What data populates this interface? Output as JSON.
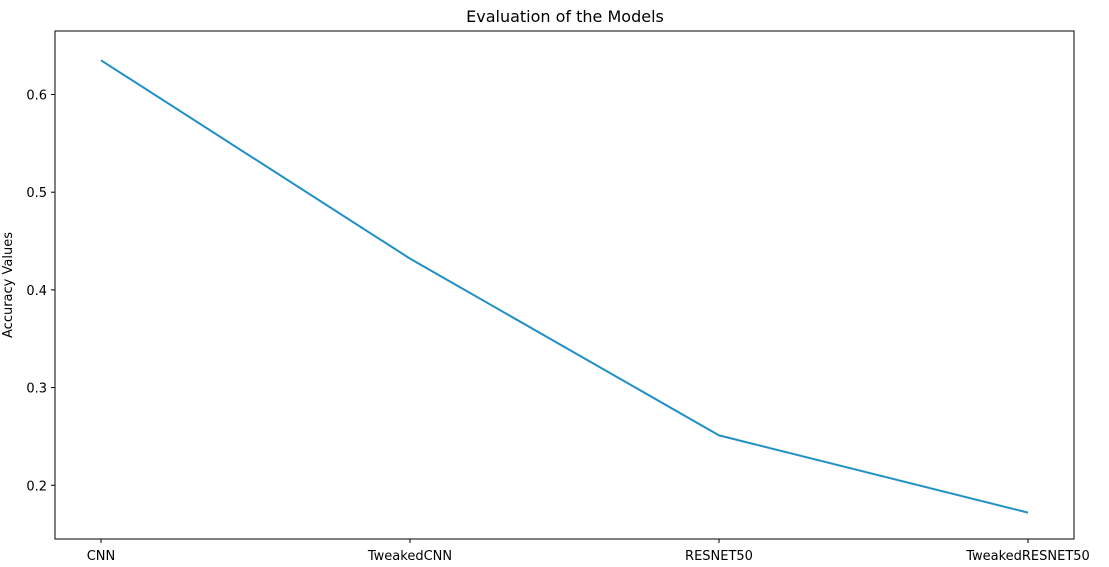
{
  "chart_data": {
    "type": "line",
    "title": "Evaluation of the Models",
    "xlabel": "",
    "ylabel": "Accuracy Values",
    "categories": [
      "CNN",
      "TweakedCNN",
      "RESNET50",
      "TweakedRESNET50"
    ],
    "series": [
      {
        "values": [
          0.635,
          0.432,
          0.251,
          0.172
        ],
        "color": "#1f8fc6"
      }
    ],
    "yticks": [
      0.2,
      0.3,
      0.4,
      0.5,
      0.6
    ],
    "ytick_labels": [
      "0.2",
      "0.3",
      "0.4",
      "0.5",
      "0.6"
    ],
    "ylim": [
      0.145,
      0.665
    ],
    "grid": false,
    "legend": "none"
  }
}
